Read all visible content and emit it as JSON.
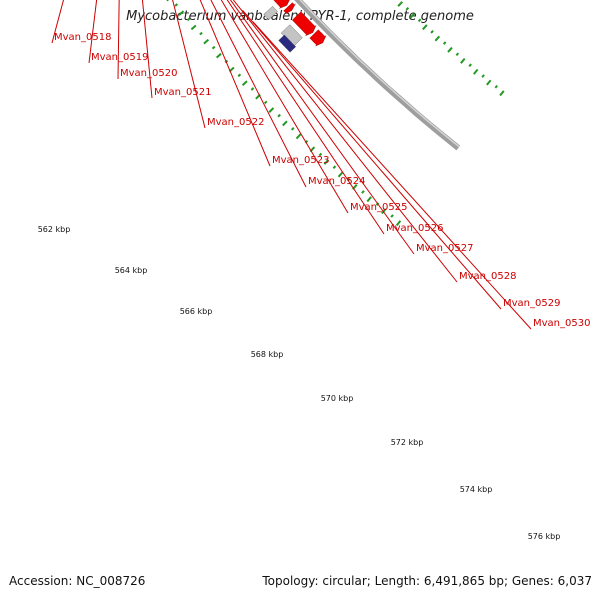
{
  "title": "Mycobacterium vanbaalenii PYR-1, complete genome",
  "footer": {
    "accession": "Accession: NC_008726",
    "summary": "Topology: circular; Length: 6,491,865 bp; Genes: 6,037"
  },
  "colors": {
    "forward_gene": "#ee0000",
    "backbone": "#9e9e9e",
    "tick": "#229922",
    "label": "#cc0000",
    "gray_feature": "#c4c4c4",
    "dark_blue_feature": "#2a2a80",
    "navy_feature": "#0a0a7a",
    "steel_blue_feature": "#5f86b8",
    "cyan_feature": "#33e6f0"
  },
  "scale_labels": [
    "562 kbp",
    "564 kbp",
    "566 kbp",
    "568 kbp",
    "570 kbp",
    "572 kbp",
    "574 kbp",
    "576 kbp"
  ],
  "gene_labels": [
    "Mvan_0518",
    "Mvan_0519",
    "Mvan_0520",
    "Mvan_0521",
    "Mvan_0522",
    "Mvan_0523",
    "Mvan_0524",
    "Mvan_0525",
    "Mvan_0526",
    "Mvan_0527",
    "Mvan_0528",
    "Mvan_0529",
    "Mvan_0530"
  ]
}
